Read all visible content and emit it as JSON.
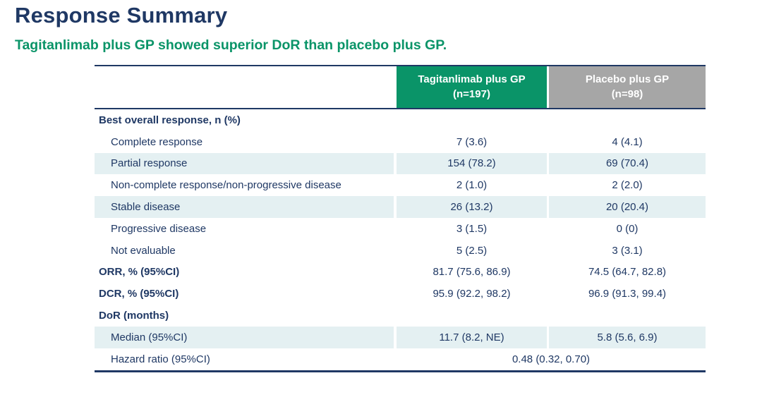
{
  "page": {
    "title": "Response Summary",
    "subtitle": "Tagitanlimab plus GP showed superior DoR than placebo plus GP."
  },
  "colors": {
    "title_navy": "#1f3864",
    "subtitle_green": "#0a9468",
    "header_green_bg": "#0a9468",
    "header_gray_bg": "#a6a6a6",
    "row_stripe_bg": "#e4f0f2",
    "border_navy": "#1f3864"
  },
  "table": {
    "columns": [
      {
        "label": "Tagitanlimab plus GP",
        "n": "(n=197)"
      },
      {
        "label": "Placebo plus GP",
        "n": "(n=98)"
      }
    ],
    "rows": [
      {
        "label": "Best overall response, n (%)",
        "bold": true,
        "indent": false,
        "stripe": false,
        "values": [
          "",
          ""
        ]
      },
      {
        "label": "Complete response",
        "bold": false,
        "indent": true,
        "stripe": false,
        "values": [
          "7 (3.6)",
          "4 (4.1)"
        ]
      },
      {
        "label": "Partial response",
        "bold": false,
        "indent": true,
        "stripe": true,
        "values": [
          "154 (78.2)",
          "69 (70.4)"
        ]
      },
      {
        "label": "Non-complete response/non-progressive disease",
        "bold": false,
        "indent": true,
        "stripe": false,
        "values": [
          "2 (1.0)",
          "2 (2.0)"
        ]
      },
      {
        "label": "Stable disease",
        "bold": false,
        "indent": true,
        "stripe": true,
        "values": [
          "26 (13.2)",
          "20 (20.4)"
        ]
      },
      {
        "label": "Progressive disease",
        "bold": false,
        "indent": true,
        "stripe": false,
        "values": [
          "3 (1.5)",
          "0 (0)"
        ]
      },
      {
        "label": "Not evaluable",
        "bold": false,
        "indent": true,
        "stripe": false,
        "values": [
          "5 (2.5)",
          "3 (3.1)"
        ]
      },
      {
        "label": "ORR, % (95%CI)",
        "bold": true,
        "indent": false,
        "stripe": false,
        "values": [
          "81.7 (75.6, 86.9)",
          "74.5 (64.7, 82.8)"
        ]
      },
      {
        "label": "DCR, % (95%CI)",
        "bold": true,
        "indent": false,
        "stripe": false,
        "values": [
          "95.9 (92.2, 98.2)",
          "96.9 (91.3, 99.4)"
        ]
      },
      {
        "label": "DoR (months)",
        "bold": true,
        "indent": false,
        "stripe": false,
        "values": [
          "",
          ""
        ]
      },
      {
        "label": "Median (95%CI)",
        "bold": false,
        "indent": true,
        "stripe": true,
        "values": [
          "11.7 (8.2, NE)",
          "5.8 (5.6, 6.9)"
        ]
      },
      {
        "label": "Hazard ratio (95%CI)",
        "bold": false,
        "indent": true,
        "stripe": false,
        "span": true,
        "values": [
          "0.48 (0.32, 0.70)"
        ]
      }
    ]
  }
}
